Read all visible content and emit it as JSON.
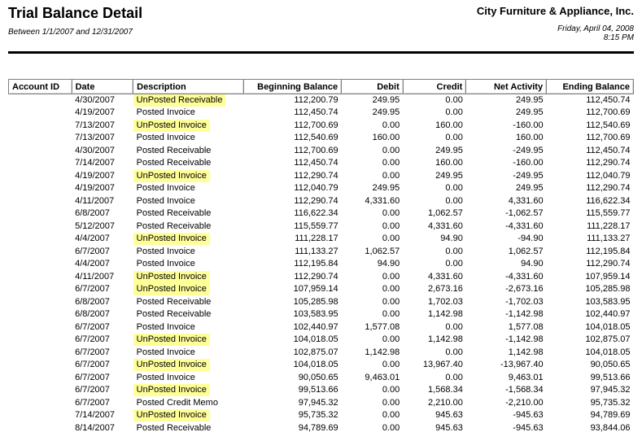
{
  "header": {
    "title": "Trial Balance Detail",
    "date_range": "Between 1/1/2007 and 12/31/2007",
    "company": "City Furniture & Appliance, Inc.",
    "printed_date": "Friday, April 04, 2008",
    "printed_time": "8:15 PM"
  },
  "colors": {
    "highlight": "#ffff99"
  },
  "table": {
    "columns": [
      "Account ID",
      "Date",
      "Description",
      "Beginning Balance",
      "Debit",
      "Credit",
      "Net Activity",
      "Ending Balance"
    ],
    "rows": [
      {
        "account_id": "",
        "date": "4/30/2007",
        "description": "UnPosted Receivable",
        "highlighted": true,
        "beginning_balance": "112,200.79",
        "debit": "249.95",
        "credit": "0.00",
        "net_activity": "249.95",
        "ending_balance": "112,450.74"
      },
      {
        "account_id": "",
        "date": "4/19/2007",
        "description": "Posted Invoice",
        "highlighted": false,
        "beginning_balance": "112,450.74",
        "debit": "249.95",
        "credit": "0.00",
        "net_activity": "249.95",
        "ending_balance": "112,700.69"
      },
      {
        "account_id": "",
        "date": "7/13/2007",
        "description": "UnPosted Invoice",
        "highlighted": true,
        "beginning_balance": "112,700.69",
        "debit": "0.00",
        "credit": "160.00",
        "net_activity": "-160.00",
        "ending_balance": "112,540.69"
      },
      {
        "account_id": "",
        "date": "7/13/2007",
        "description": "Posted Invoice",
        "highlighted": false,
        "beginning_balance": "112,540.69",
        "debit": "160.00",
        "credit": "0.00",
        "net_activity": "160.00",
        "ending_balance": "112,700.69"
      },
      {
        "account_id": "",
        "date": "4/30/2007",
        "description": "Posted Receivable",
        "highlighted": false,
        "beginning_balance": "112,700.69",
        "debit": "0.00",
        "credit": "249.95",
        "net_activity": "-249.95",
        "ending_balance": "112,450.74"
      },
      {
        "account_id": "",
        "date": "7/14/2007",
        "description": "Posted Receivable",
        "highlighted": false,
        "beginning_balance": "112,450.74",
        "debit": "0.00",
        "credit": "160.00",
        "net_activity": "-160.00",
        "ending_balance": "112,290.74"
      },
      {
        "account_id": "",
        "date": "4/19/2007",
        "description": "UnPosted Invoice",
        "highlighted": true,
        "beginning_balance": "112,290.74",
        "debit": "0.00",
        "credit": "249.95",
        "net_activity": "-249.95",
        "ending_balance": "112,040.79"
      },
      {
        "account_id": "",
        "date": "4/19/2007",
        "description": "Posted Invoice",
        "highlighted": false,
        "beginning_balance": "112,040.79",
        "debit": "249.95",
        "credit": "0.00",
        "net_activity": "249.95",
        "ending_balance": "112,290.74"
      },
      {
        "account_id": "",
        "date": "4/11/2007",
        "description": "Posted Invoice",
        "highlighted": false,
        "beginning_balance": "112,290.74",
        "debit": "4,331.60",
        "credit": "0.00",
        "net_activity": "4,331.60",
        "ending_balance": "116,622.34"
      },
      {
        "account_id": "",
        "date": "6/8/2007",
        "description": "Posted Receivable",
        "highlighted": false,
        "beginning_balance": "116,622.34",
        "debit": "0.00",
        "credit": "1,062.57",
        "net_activity": "-1,062.57",
        "ending_balance": "115,559.77"
      },
      {
        "account_id": "",
        "date": "5/12/2007",
        "description": "Posted Receivable",
        "highlighted": false,
        "beginning_balance": "115,559.77",
        "debit": "0.00",
        "credit": "4,331.60",
        "net_activity": "-4,331.60",
        "ending_balance": "111,228.17"
      },
      {
        "account_id": "",
        "date": "4/4/2007",
        "description": "UnPosted Invoice",
        "highlighted": true,
        "beginning_balance": "111,228.17",
        "debit": "0.00",
        "credit": "94.90",
        "net_activity": "-94.90",
        "ending_balance": "111,133.27"
      },
      {
        "account_id": "",
        "date": "6/7/2007",
        "description": "Posted Invoice",
        "highlighted": false,
        "beginning_balance": "111,133.27",
        "debit": "1,062.57",
        "credit": "0.00",
        "net_activity": "1,062.57",
        "ending_balance": "112,195.84"
      },
      {
        "account_id": "",
        "date": "4/4/2007",
        "description": "Posted Invoice",
        "highlighted": false,
        "beginning_balance": "112,195.84",
        "debit": "94.90",
        "credit": "0.00",
        "net_activity": "94.90",
        "ending_balance": "112,290.74"
      },
      {
        "account_id": "",
        "date": "4/11/2007",
        "description": "UnPosted Invoice",
        "highlighted": true,
        "beginning_balance": "112,290.74",
        "debit": "0.00",
        "credit": "4,331.60",
        "net_activity": "-4,331.60",
        "ending_balance": "107,959.14"
      },
      {
        "account_id": "",
        "date": "6/7/2007",
        "description": "UnPosted Invoice",
        "highlighted": true,
        "beginning_balance": "107,959.14",
        "debit": "0.00",
        "credit": "2,673.16",
        "net_activity": "-2,673.16",
        "ending_balance": "105,285.98"
      },
      {
        "account_id": "",
        "date": "6/8/2007",
        "description": "Posted Receivable",
        "highlighted": false,
        "beginning_balance": "105,285.98",
        "debit": "0.00",
        "credit": "1,702.03",
        "net_activity": "-1,702.03",
        "ending_balance": "103,583.95"
      },
      {
        "account_id": "",
        "date": "6/8/2007",
        "description": "Posted Receivable",
        "highlighted": false,
        "beginning_balance": "103,583.95",
        "debit": "0.00",
        "credit": "1,142.98",
        "net_activity": "-1,142.98",
        "ending_balance": "102,440.97"
      },
      {
        "account_id": "",
        "date": "6/7/2007",
        "description": "Posted Invoice",
        "highlighted": false,
        "beginning_balance": "102,440.97",
        "debit": "1,577.08",
        "credit": "0.00",
        "net_activity": "1,577.08",
        "ending_balance": "104,018.05"
      },
      {
        "account_id": "",
        "date": "6/7/2007",
        "description": "UnPosted Invoice",
        "highlighted": true,
        "beginning_balance": "104,018.05",
        "debit": "0.00",
        "credit": "1,142.98",
        "net_activity": "-1,142.98",
        "ending_balance": "102,875.07"
      },
      {
        "account_id": "",
        "date": "6/7/2007",
        "description": "Posted Invoice",
        "highlighted": false,
        "beginning_balance": "102,875.07",
        "debit": "1,142.98",
        "credit": "0.00",
        "net_activity": "1,142.98",
        "ending_balance": "104,018.05"
      },
      {
        "account_id": "",
        "date": "6/7/2007",
        "description": "UnPosted Invoice",
        "highlighted": true,
        "beginning_balance": "104,018.05",
        "debit": "0.00",
        "credit": "13,967.40",
        "net_activity": "-13,967.40",
        "ending_balance": "90,050.65"
      },
      {
        "account_id": "",
        "date": "6/7/2007",
        "description": "Posted Invoice",
        "highlighted": false,
        "beginning_balance": "90,050.65",
        "debit": "9,463.01",
        "credit": "0.00",
        "net_activity": "9,463.01",
        "ending_balance": "99,513.66"
      },
      {
        "account_id": "",
        "date": "6/7/2007",
        "description": "UnPosted Invoice",
        "highlighted": true,
        "beginning_balance": "99,513.66",
        "debit": "0.00",
        "credit": "1,568.34",
        "net_activity": "-1,568.34",
        "ending_balance": "97,945.32"
      },
      {
        "account_id": "",
        "date": "6/7/2007",
        "description": "Posted Credit Memo",
        "highlighted": false,
        "beginning_balance": "97,945.32",
        "debit": "0.00",
        "credit": "2,210.00",
        "net_activity": "-2,210.00",
        "ending_balance": "95,735.32"
      },
      {
        "account_id": "",
        "date": "7/14/2007",
        "description": "UnPosted Invoice",
        "highlighted": true,
        "beginning_balance": "95,735.32",
        "debit": "0.00",
        "credit": "945.63",
        "net_activity": "-945.63",
        "ending_balance": "94,789.69"
      },
      {
        "account_id": "",
        "date": "8/14/2007",
        "description": "Posted Receivable",
        "highlighted": false,
        "beginning_balance": "94,789.69",
        "debit": "0.00",
        "credit": "945.63",
        "net_activity": "-945.63",
        "ending_balance": "93,844.06"
      }
    ]
  }
}
